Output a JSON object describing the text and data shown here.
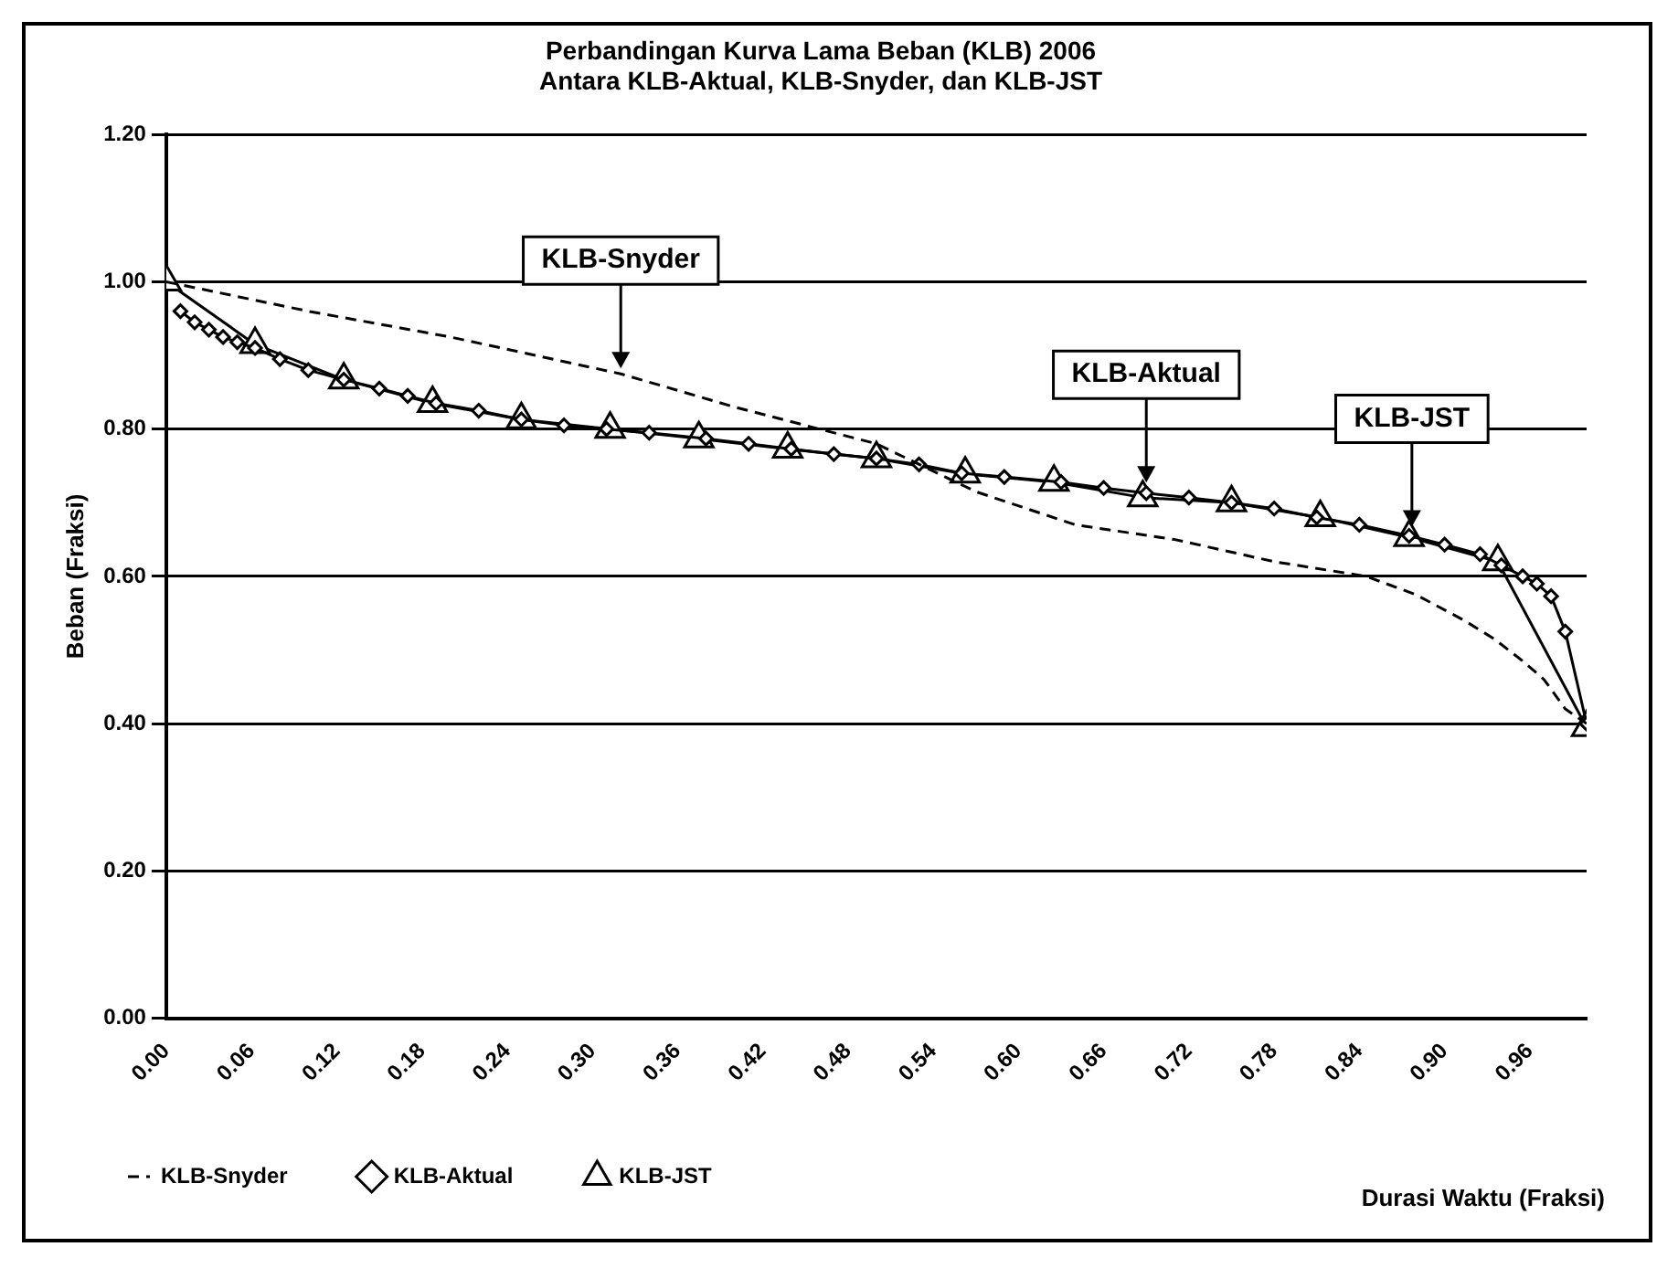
{
  "chart_data": {
    "type": "line",
    "title": "Perbandingan Kurva Lama Beban (KLB) 2006\nAntara KLB-Aktual, KLB-Snyder, dan KLB-JST",
    "xlabel": "Durasi Waktu (Fraksi)",
    "ylabel": "Beban (Fraksi)",
    "xlim": [
      0,
      1
    ],
    "xticks": [
      {
        "value": 0,
        "label": "0.00"
      },
      {
        "value": 0.06,
        "label": "0.06"
      },
      {
        "value": 0.12,
        "label": "0.12"
      },
      {
        "value": 0.18,
        "label": "0.18"
      },
      {
        "value": 0.24,
        "label": "0.24"
      },
      {
        "value": 0.3,
        "label": "0.30"
      },
      {
        "value": 0.36,
        "label": "0.36"
      },
      {
        "value": 0.42,
        "label": "0.42"
      },
      {
        "value": 0.48,
        "label": "0.48"
      },
      {
        "value": 0.54,
        "label": "0.54"
      },
      {
        "value": 0.6,
        "label": "0.60"
      },
      {
        "value": 0.66,
        "label": "0.66"
      },
      {
        "value": 0.72,
        "label": "0.72"
      },
      {
        "value": 0.78,
        "label": "0.78"
      },
      {
        "value": 0.84,
        "label": "0.84"
      },
      {
        "value": 0.9,
        "label": "0.90"
      },
      {
        "value": 0.96,
        "label": "0.96"
      }
    ],
    "ylim": [
      0,
      1.2
    ],
    "yticks": [
      {
        "value": 0,
        "label": "0.00"
      },
      {
        "value": 0.2,
        "label": "0.20"
      },
      {
        "value": 0.4,
        "label": "0.40"
      },
      {
        "value": 0.6,
        "label": "0.60"
      },
      {
        "value": 0.8,
        "label": "0.80"
      },
      {
        "value": 1,
        "label": "1.00"
      },
      {
        "value": 1.2,
        "label": "1.20"
      }
    ],
    "grid": "y",
    "legend": "bottom",
    "series": [
      {
        "name": "KLB-Snyder",
        "color": "#000000",
        "line_style": "dashed",
        "marker": "none",
        "x": [
          0,
          0.1,
          0.2,
          0.32,
          0.4,
          0.46,
          0.5,
          0.57,
          0.64,
          0.71,
          0.78,
          0.845,
          0.88,
          0.914,
          0.935,
          0.955,
          0.97,
          0.985,
          1.0
        ],
        "values": [
          1.0,
          0.96,
          0.925,
          0.875,
          0.83,
          0.8,
          0.78,
          0.715,
          0.67,
          0.65,
          0.62,
          0.6,
          0.575,
          0.54,
          0.515,
          0.485,
          0.46,
          0.42,
          0.4
        ]
      },
      {
        "name": "KLB-Aktual",
        "color": "#000000",
        "line_style": "solid",
        "marker": "diamond",
        "x": [
          0.01,
          0.02,
          0.03,
          0.04,
          0.05,
          0.0625,
          0.08,
          0.1,
          0.125,
          0.15,
          0.17,
          0.19,
          0.22,
          0.25,
          0.28,
          0.31,
          0.34,
          0.38,
          0.41,
          0.44,
          0.47,
          0.5,
          0.53,
          0.56,
          0.59,
          0.63,
          0.66,
          0.69,
          0.72,
          0.75,
          0.78,
          0.81,
          0.84,
          0.875,
          0.9,
          0.925,
          0.94,
          0.955,
          0.965,
          0.975,
          0.985,
          1.0
        ],
        "values": [
          0.96,
          0.945,
          0.935,
          0.925,
          0.918,
          0.91,
          0.895,
          0.88,
          0.867,
          0.855,
          0.845,
          0.835,
          0.825,
          0.813,
          0.805,
          0.8,
          0.795,
          0.787,
          0.78,
          0.773,
          0.766,
          0.76,
          0.752,
          0.74,
          0.735,
          0.728,
          0.72,
          0.713,
          0.707,
          0.7,
          0.692,
          0.68,
          0.67,
          0.655,
          0.643,
          0.63,
          0.615,
          0.6,
          0.59,
          0.573,
          0.525,
          0.4
        ]
      },
      {
        "name": "KLB-JST",
        "color": "#000000",
        "line_style": "solid",
        "marker": "triangle",
        "x": [
          0,
          0.0625,
          0.125,
          0.1875,
          0.25,
          0.3125,
          0.375,
          0.4375,
          0.5,
          0.5625,
          0.625,
          0.6875,
          0.75,
          0.8125,
          0.875,
          0.9375,
          1.0
        ],
        "values": [
          1.0,
          0.915,
          0.867,
          0.835,
          0.813,
          0.8,
          0.787,
          0.773,
          0.76,
          0.739,
          0.728,
          0.707,
          0.7,
          0.68,
          0.653,
          0.62,
          0.395
        ]
      }
    ],
    "annotations": [
      {
        "text": "KLB-Snyder",
        "x": 0.32,
        "y": 0.875
      },
      {
        "text": "KLB-Aktual",
        "x": 0.69,
        "y": 0.72
      },
      {
        "text": "KLB-JST",
        "x": 0.877,
        "y": 0.66
      }
    ]
  }
}
